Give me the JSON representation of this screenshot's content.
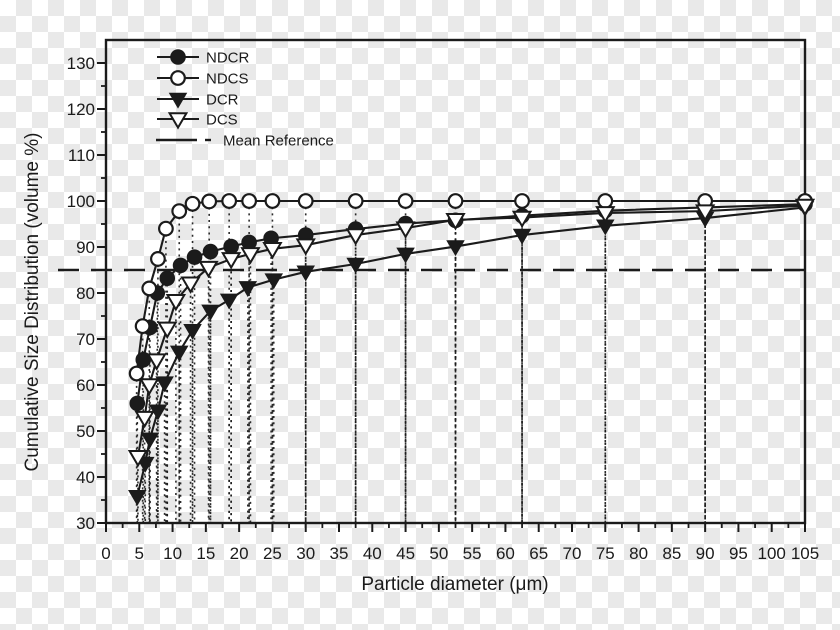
{
  "colors": {
    "ink": "#1b1b1b",
    "checker_light": "#ffffff",
    "checker_dark": "#e9e9e9",
    "open_marker_fill": "#ffffff"
  },
  "chart_data": {
    "type": "line",
    "title": "",
    "xlabel": "Particle diameter (μm)",
    "ylabel": "Cumulative Size Distribution (volume %)",
    "xlim": [
      0,
      105
    ],
    "ylim": [
      30,
      135
    ],
    "x_ticks": [
      0,
      5,
      10,
      15,
      20,
      25,
      30,
      35,
      40,
      45,
      50,
      55,
      60,
      65,
      70,
      75,
      80,
      85,
      90,
      95,
      100,
      105
    ],
    "y_ticks": [
      30,
      40,
      50,
      60,
      70,
      80,
      90,
      100,
      110,
      120,
      130
    ],
    "x_minor_step": 2.5,
    "y_minor_step": 5,
    "grid": false,
    "droplines": "dotted vertical line from every data point down to the x-axis",
    "legend_position": "top-left inside plot",
    "reference_line": {
      "label": "Mean Reference",
      "y": 85,
      "style": "long-dash"
    },
    "legend": [
      {
        "label": "NDCR",
        "marker": "filled-circle"
      },
      {
        "label": "NDCS",
        "marker": "open-circle"
      },
      {
        "label": "DCR",
        "marker": "filled-triangle-down"
      },
      {
        "label": "DCS",
        "marker": "open-triangle-down"
      },
      {
        "label": "Mean Reference",
        "marker": "dashed-line"
      }
    ],
    "series": [
      {
        "name": "NDCR",
        "marker": "filled-circle",
        "points": [
          [
            4.7,
            56
          ],
          [
            5.6,
            65.5
          ],
          [
            6.6,
            72.5
          ],
          [
            7.7,
            80
          ],
          [
            9.2,
            83.2
          ],
          [
            11.2,
            86
          ],
          [
            13.3,
            87.8
          ],
          [
            15.7,
            89
          ],
          [
            18.8,
            90.1
          ],
          [
            21.5,
            91
          ],
          [
            24.8,
            91.9
          ],
          [
            30,
            92.6
          ],
          [
            37.5,
            93.9
          ],
          [
            45,
            95.1
          ],
          [
            52.5,
            95.8
          ],
          [
            62.5,
            96.8
          ],
          [
            75,
            97.9
          ],
          [
            90,
            98.6
          ],
          [
            105,
            99.3
          ]
        ]
      },
      {
        "name": "NDCS",
        "marker": "open-circle",
        "points": [
          [
            4.6,
            62.5
          ],
          [
            5.5,
            72.8
          ],
          [
            6.5,
            81
          ],
          [
            7.8,
            87.4
          ],
          [
            9,
            94
          ],
          [
            11,
            97.8
          ],
          [
            13,
            99.4
          ],
          [
            15.5,
            99.9
          ],
          [
            18.5,
            100
          ],
          [
            21.5,
            100
          ],
          [
            25,
            100
          ],
          [
            30,
            100
          ],
          [
            37.5,
            100
          ],
          [
            45,
            100
          ],
          [
            52.5,
            100
          ],
          [
            62.5,
            100
          ],
          [
            75,
            100
          ],
          [
            90,
            100
          ],
          [
            105,
            100
          ]
        ]
      },
      {
        "name": "DCR",
        "marker": "filled-triangle-down",
        "points": [
          [
            4.7,
            35.8
          ],
          [
            5.9,
            43
          ],
          [
            6.6,
            48.3
          ],
          [
            7.8,
            54.4
          ],
          [
            8.8,
            60.5
          ],
          [
            11,
            67.2
          ],
          [
            13,
            71.9
          ],
          [
            15.7,
            76.1
          ],
          [
            18.5,
            78.5
          ],
          [
            21.3,
            81.2
          ],
          [
            25.2,
            82.9
          ],
          [
            30,
            84.6
          ],
          [
            37.5,
            86.3
          ],
          [
            45,
            88.5
          ],
          [
            52.5,
            90.1
          ],
          [
            62.5,
            92.6
          ],
          [
            75,
            94.6
          ],
          [
            90,
            96.3
          ],
          [
            105,
            98.6
          ]
        ]
      },
      {
        "name": "DCS",
        "marker": "open-triangle-down",
        "points": [
          [
            4.8,
            44.4
          ],
          [
            5.8,
            52.9
          ],
          [
            6.5,
            60
          ],
          [
            7.6,
            65.4
          ],
          [
            9.2,
            72.3
          ],
          [
            10.5,
            78.3
          ],
          [
            12.7,
            82.1
          ],
          [
            15.4,
            85.5
          ],
          [
            18.8,
            87.4
          ],
          [
            21.7,
            88.5
          ],
          [
            25,
            89.6
          ],
          [
            30,
            90.4
          ],
          [
            37.5,
            92.6
          ],
          [
            45,
            94.1
          ],
          [
            52.5,
            95.9
          ],
          [
            62.5,
            96.4
          ],
          [
            75,
            97.4
          ],
          [
            90,
            97.8
          ],
          [
            105,
            99
          ]
        ]
      }
    ]
  }
}
